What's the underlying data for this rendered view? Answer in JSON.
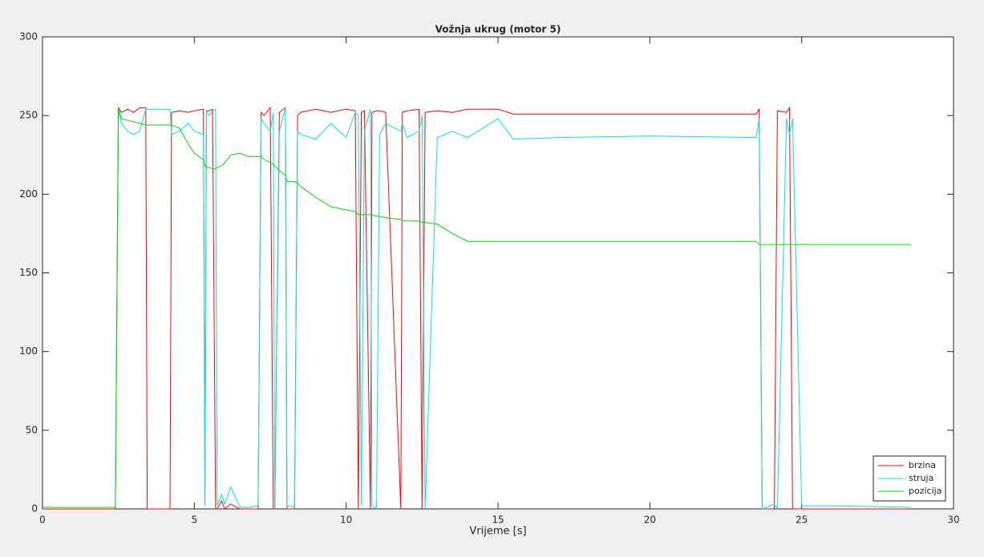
{
  "chart_data": {
    "type": "line",
    "title": "Vožnja ukrug (motor 5)",
    "xlabel": "Vrijeme [s]",
    "x": [
      0,
      2.4,
      2.5,
      2.6,
      2.8,
      3.0,
      3.2,
      3.4,
      3.45,
      4.2,
      4.25,
      4.5,
      4.8,
      5.0,
      5.3,
      5.35,
      5.4,
      5.5,
      5.6,
      5.7,
      5.75,
      5.9,
      6.0,
      6.2,
      6.5,
      6.8,
      7.1,
      7.2,
      7.3,
      7.5,
      7.6,
      7.65,
      7.8,
      8.0,
      8.05,
      8.3,
      8.4,
      8.5,
      9.0,
      9.5,
      10.0,
      10.3,
      10.4,
      10.5,
      10.6,
      10.8,
      10.85,
      11.0,
      11.1,
      11.3,
      11.8,
      11.85,
      12.0,
      12.4,
      12.5,
      12.6,
      13.0,
      13.5,
      14.0,
      15.0,
      15.5,
      17,
      20,
      23.5,
      23.6,
      23.7,
      24.1,
      24.2,
      24.5,
      24.6,
      24.7,
      25,
      26,
      28.6
    ],
    "series": [
      {
        "name": "brzina",
        "color": "#ff0000",
        "values": [
          0,
          0,
          255,
          252,
          254,
          252,
          255,
          255,
          0,
          0,
          252,
          253,
          252,
          253,
          254,
          3,
          253,
          253,
          254,
          0,
          0,
          5,
          0,
          3,
          0,
          0,
          0,
          252,
          250,
          255,
          0,
          0,
          252,
          255,
          0,
          0,
          250,
          252,
          254,
          252,
          254,
          253,
          0,
          252,
          253,
          0,
          252,
          253,
          253,
          252,
          0,
          252,
          253,
          254,
          0,
          252,
          253,
          252,
          254,
          254,
          251,
          251,
          251,
          251,
          254,
          0,
          0,
          253,
          252,
          255,
          0,
          0,
          0,
          0
        ]
      },
      {
        "name": "struja",
        "color": "#00e5e5",
        "values": [
          1,
          1,
          253,
          245,
          240,
          238,
          240,
          254,
          254,
          254,
          238,
          240,
          245,
          240,
          238,
          2,
          253,
          250,
          253,
          254,
          2,
          9,
          3,
          14,
          1,
          1,
          2,
          248,
          245,
          240,
          252,
          0,
          240,
          255,
          2,
          1,
          240,
          238,
          235,
          245,
          236,
          252,
          250,
          2,
          240,
          254,
          2,
          0,
          238,
          245,
          240,
          245,
          236,
          240,
          250,
          0,
          236,
          240,
          236,
          248,
          235,
          236,
          237,
          236,
          248,
          0,
          3,
          0,
          248,
          238,
          248,
          2,
          2,
          1
        ]
      },
      {
        "name": "pozicija",
        "color": "#00dd00",
        "values": [
          1,
          1,
          255,
          248,
          247,
          246,
          245,
          244,
          244,
          244,
          244,
          242,
          232,
          226,
          222,
          218,
          217,
          217,
          216,
          216,
          217,
          218,
          220,
          225,
          226,
          224,
          224,
          224,
          222,
          220,
          219,
          218,
          215,
          212,
          208,
          208,
          207,
          205,
          198,
          192,
          190,
          189,
          187,
          187,
          187,
          187,
          187,
          186,
          186,
          185,
          184,
          183,
          183,
          183,
          182,
          182,
          181,
          175,
          170,
          170,
          170,
          170,
          170,
          170,
          168,
          168,
          168,
          168,
          168,
          168,
          168,
          168,
          168,
          168
        ]
      }
    ],
    "xlim": [
      0,
      30
    ],
    "xticks": [
      0,
      5,
      10,
      15,
      20,
      25,
      30
    ],
    "ylim": [
      0,
      300
    ],
    "yticks": [
      0,
      50,
      100,
      150,
      200,
      250,
      300
    ],
    "grid": false,
    "legend": "lower right"
  }
}
